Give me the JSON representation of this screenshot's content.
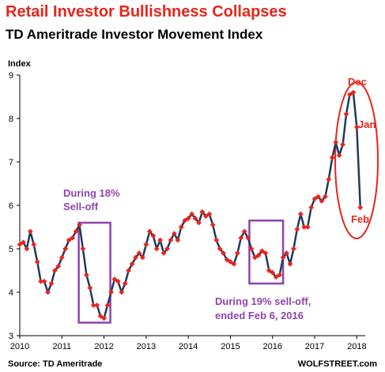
{
  "title": "Retail Investor Bullishness Collapses",
  "subtitle": "TD Ameritrade Investor Movement Index",
  "source": "Source: TD Ameritrade",
  "credit": "WOLFSTREET.com",
  "colors": {
    "title": "#e8251b",
    "line": "#1f3a5f",
    "marker": "#e8251b",
    "box": "#8e44ad",
    "ellipse": "#e8251b"
  },
  "chart_data": {
    "type": "line",
    "ylabel": "Index",
    "xlim": [
      2010,
      2018.2
    ],
    "ylim": [
      3,
      9
    ],
    "x_ticks": [
      2010,
      2011,
      2012,
      2013,
      2014,
      2015,
      2016,
      2017,
      2018
    ],
    "x_tick_labels": [
      "2010",
      "2011",
      "2012",
      "2013",
      "2014",
      "2015",
      "2016",
      "2017",
      "2018"
    ],
    "y_ticks": [
      3,
      4,
      5,
      6,
      7,
      8,
      9
    ],
    "y_tick_labels": [
      "3",
      "4",
      "5",
      "6",
      "7",
      "8",
      "9"
    ],
    "grid": "none",
    "x": [
      2010.0,
      2010.083,
      2010.167,
      2010.25,
      2010.333,
      2010.417,
      2010.5,
      2010.583,
      2010.667,
      2010.75,
      2010.833,
      2010.917,
      2011.0,
      2011.083,
      2011.167,
      2011.25,
      2011.333,
      2011.417,
      2011.5,
      2011.583,
      2011.667,
      2011.75,
      2011.833,
      2011.917,
      2012.0,
      2012.083,
      2012.167,
      2012.25,
      2012.333,
      2012.417,
      2012.5,
      2012.583,
      2012.667,
      2012.75,
      2012.833,
      2012.917,
      2013.0,
      2013.083,
      2013.167,
      2013.25,
      2013.333,
      2013.417,
      2013.5,
      2013.583,
      2013.667,
      2013.75,
      2013.833,
      2013.917,
      2014.0,
      2014.083,
      2014.167,
      2014.25,
      2014.333,
      2014.417,
      2014.5,
      2014.583,
      2014.667,
      2014.75,
      2014.833,
      2014.917,
      2015.0,
      2015.083,
      2015.167,
      2015.25,
      2015.333,
      2015.417,
      2015.5,
      2015.583,
      2015.667,
      2015.75,
      2015.833,
      2015.917,
      2016.0,
      2016.083,
      2016.167,
      2016.25,
      2016.333,
      2016.417,
      2016.5,
      2016.583,
      2016.667,
      2016.75,
      2016.833,
      2016.917,
      2017.0,
      2017.083,
      2017.167,
      2017.25,
      2017.333,
      2017.417,
      2017.5,
      2017.583,
      2017.667,
      2017.75,
      2017.833,
      2017.917,
      2018.0,
      2018.083
    ],
    "series": [
      {
        "values": [
          5.1,
          5.15,
          5.0,
          5.4,
          5.1,
          4.7,
          4.25,
          4.25,
          4.0,
          4.2,
          4.5,
          4.6,
          4.8,
          5.0,
          5.2,
          5.25,
          5.4,
          5.55,
          5.0,
          4.4,
          4.1,
          3.7,
          3.7,
          3.45,
          3.4,
          3.7,
          4.0,
          4.3,
          4.25,
          4.0,
          4.2,
          4.5,
          4.65,
          4.8,
          4.9,
          4.8,
          5.1,
          5.4,
          5.3,
          5.0,
          5.2,
          4.9,
          5.0,
          5.2,
          5.35,
          5.2,
          5.5,
          5.65,
          5.7,
          5.8,
          5.7,
          5.6,
          5.85,
          5.75,
          5.8,
          5.55,
          5.2,
          5.0,
          4.9,
          4.75,
          4.7,
          4.65,
          4.9,
          5.25,
          5.4,
          5.25,
          5.0,
          4.8,
          4.85,
          4.95,
          4.9,
          4.5,
          4.45,
          4.35,
          4.4,
          4.8,
          4.9,
          4.65,
          5.0,
          5.45,
          5.8,
          5.5,
          5.5,
          5.95,
          6.15,
          6.2,
          6.1,
          6.2,
          6.6,
          7.1,
          7.45,
          7.15,
          7.4,
          8.1,
          8.55,
          8.6,
          7.8,
          5.95
        ]
      }
    ],
    "annotations": [
      {
        "text_lines": [
          "During 18%",
          "Sell-off"
        ],
        "x_range": [
          2011.4,
          2012.15
        ],
        "y_range": [
          3.3,
          5.6
        ],
        "color": "purple"
      },
      {
        "text_lines": [
          "During 19% sell-off,",
          "ended Feb 6, 2016"
        ],
        "x_range": [
          2015.45,
          2016.25
        ],
        "y_range": [
          4.2,
          5.65
        ],
        "color": "purple"
      },
      {
        "text_lines": [
          "Dec"
        ],
        "x": 2017.92,
        "y": 8.6,
        "color": "red"
      },
      {
        "text_lines": [
          "Jan"
        ],
        "x": 2018.0,
        "y": 7.8,
        "color": "red"
      },
      {
        "text_lines": [
          "Feb"
        ],
        "x": 2018.083,
        "y": 5.95,
        "color": "red"
      }
    ]
  }
}
